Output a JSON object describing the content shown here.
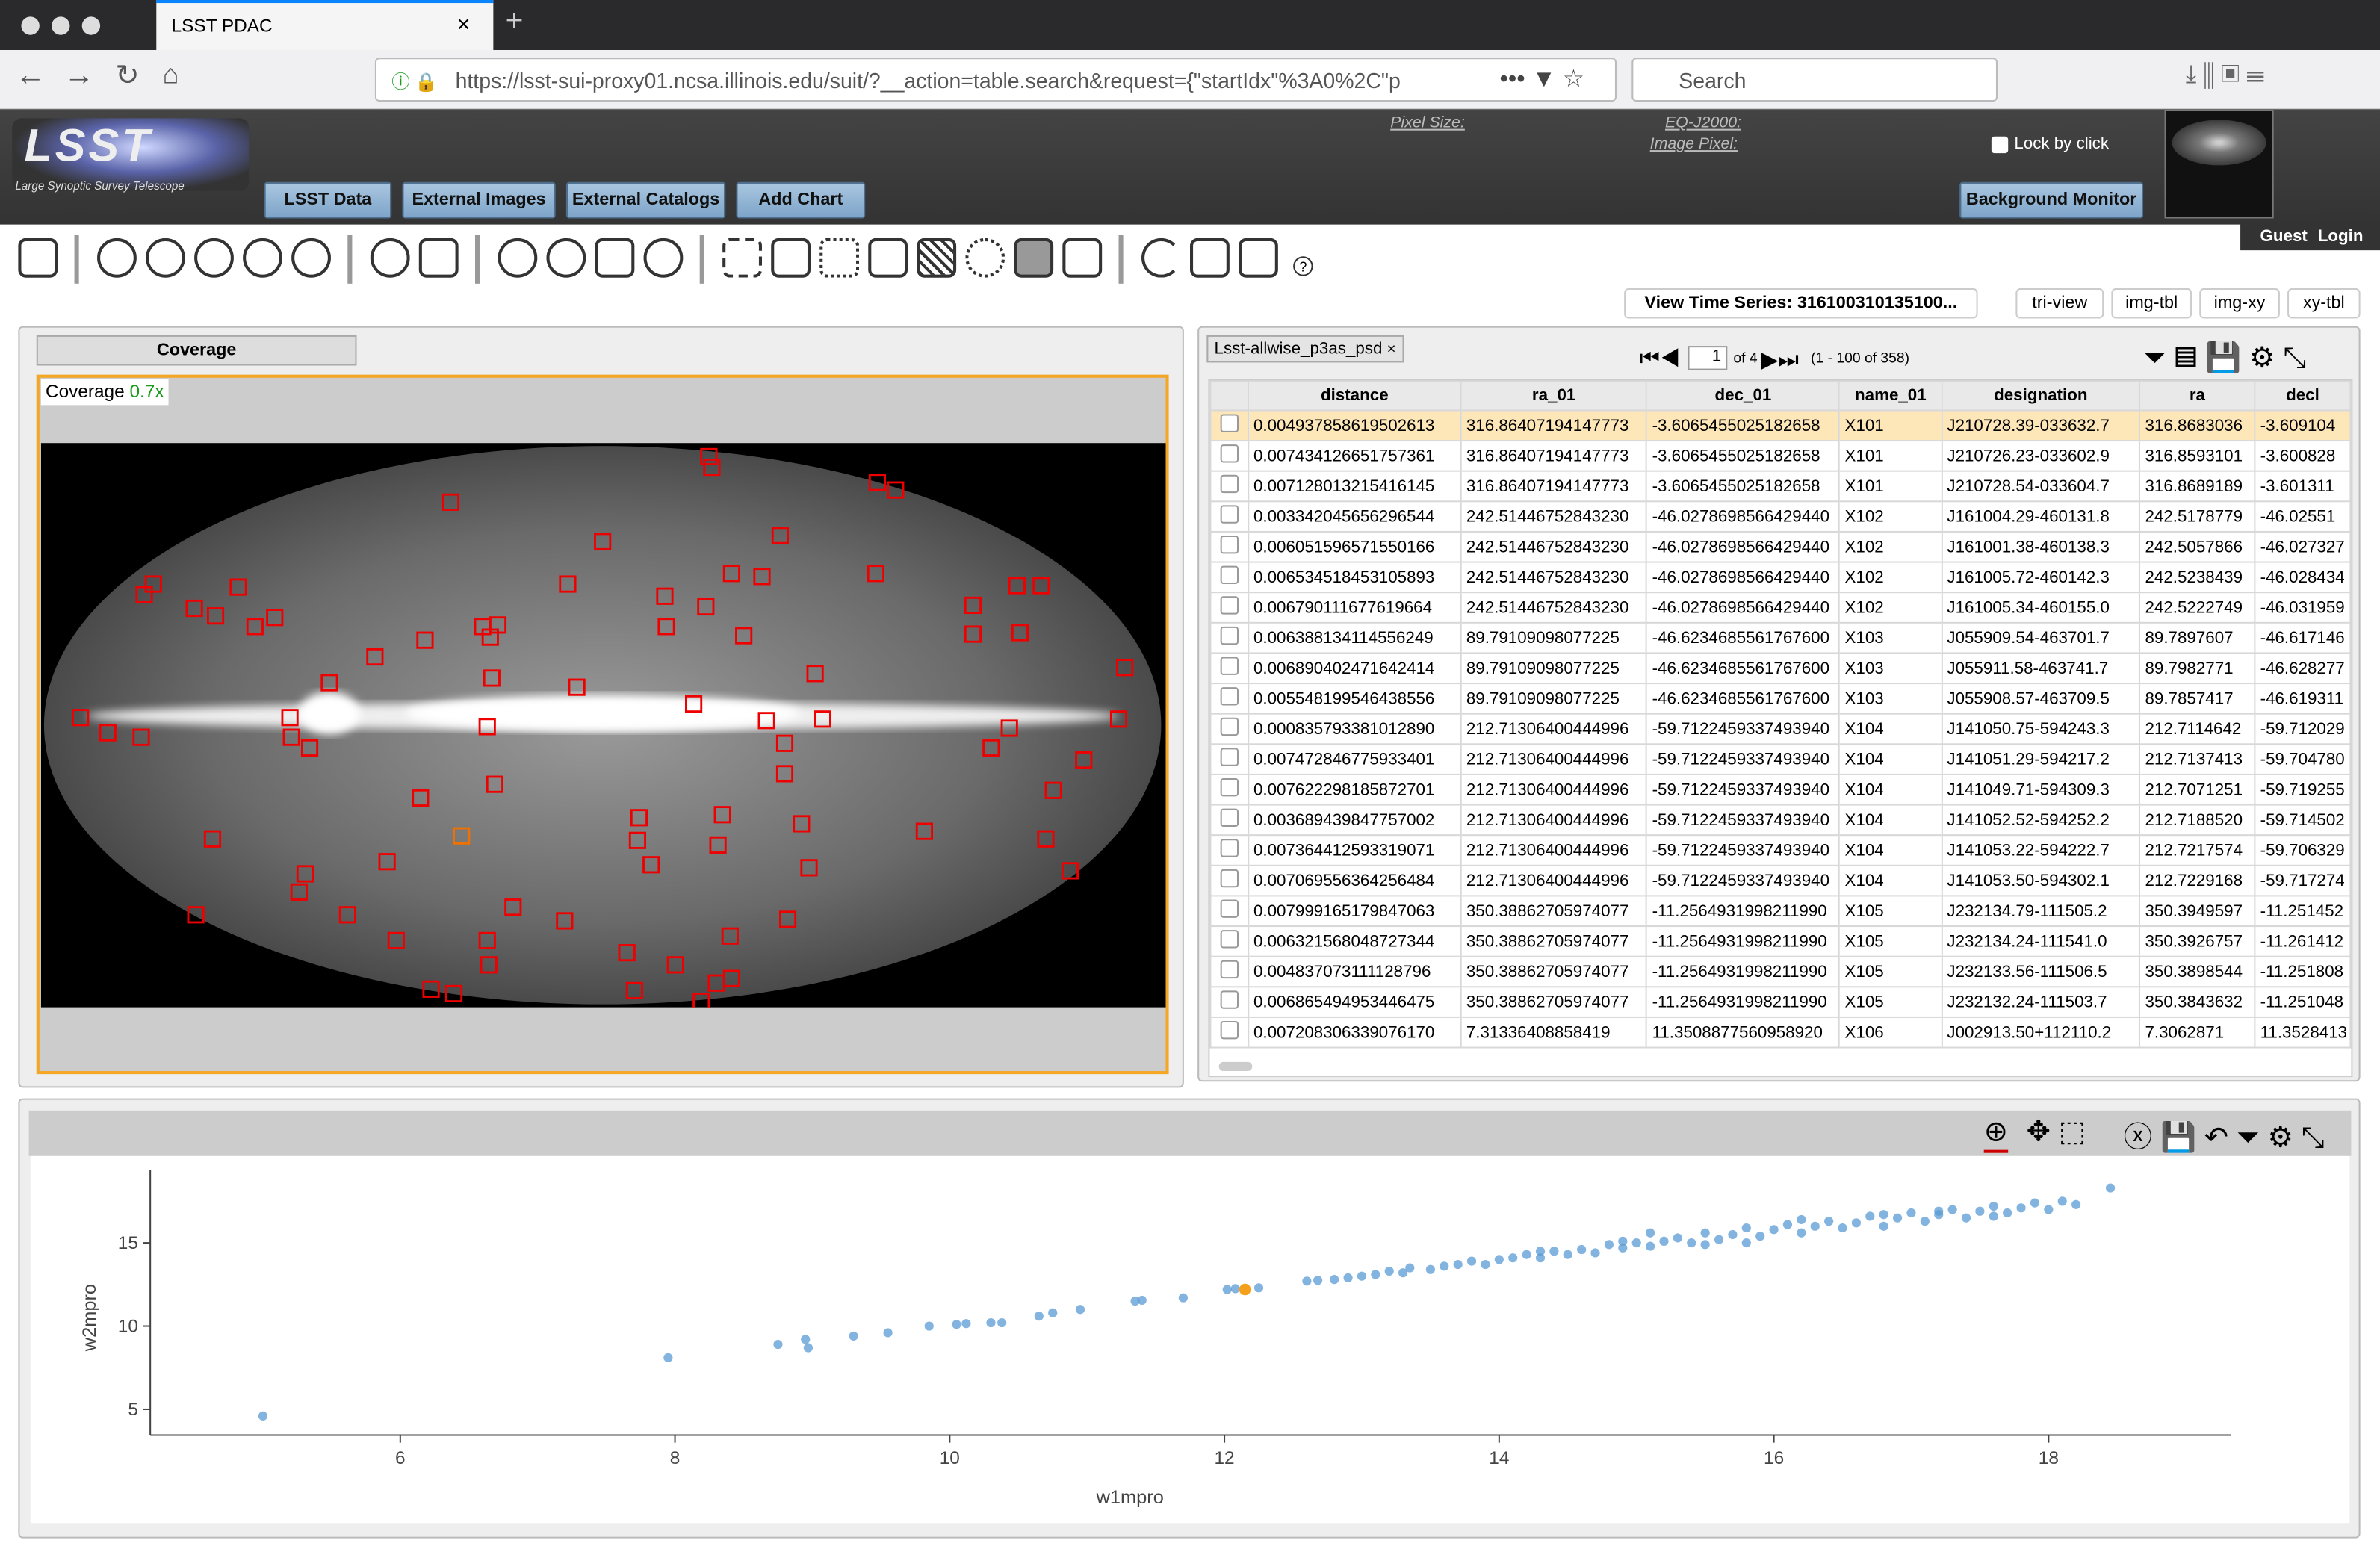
{
  "browser": {
    "tab_title": "LSST PDAC",
    "url": "https://lsst-sui-proxy01.ncsa.illinois.edu/suit/?__action=table.search&request={\"startIdx\"%3A0%2C\"p",
    "search": "Search"
  },
  "header": {
    "pixel_size": "Pixel Size:",
    "eq_j2000": "EQ-J2000:",
    "image_pixel": "Image Pixel:",
    "lock_by_click": "Lock by click",
    "buttons": [
      "LSST Data",
      "External Images",
      "External Catalogs",
      "Add Chart"
    ],
    "background_monitor": "Background Monitor",
    "guest": "Guest",
    "login": "Login",
    "logo_text": "Large Synoptic Survey Telescope"
  },
  "view": {
    "time_series": "View Time Series: 316100310135100...",
    "layouts": [
      "tri-view",
      "img-tbl",
      "img-xy",
      "xy-tbl"
    ]
  },
  "coverage": {
    "tab": "Coverage",
    "label": "Coverage",
    "zoom": "0.7x"
  },
  "table": {
    "tab": "Lsst-allwise_p3as_psd",
    "page": "1",
    "of_pages": "of 4",
    "range": "(1 - 100 of 358)",
    "columns": [
      "distance",
      "ra_01",
      "dec_01",
      "name_01",
      "designation",
      "ra",
      "decl"
    ],
    "rows": [
      [
        "0.004937858619502613",
        "316.86407194147773",
        "-3.6065455025182658",
        "X101",
        "J210728.39-033632.7",
        "316.8683036",
        "-3.609104"
      ],
      [
        "0.007434126651757361",
        "316.86407194147773",
        "-3.6065455025182658",
        "X101",
        "J210726.23-033602.9",
        "316.8593101",
        "-3.600828"
      ],
      [
        "0.007128013215416145",
        "316.86407194147773",
        "-3.6065455025182658",
        "X101",
        "J210728.54-033604.7",
        "316.8689189",
        "-3.601311"
      ],
      [
        "0.003342045656296544",
        "242.51446752843230",
        "-46.0278698566429440",
        "X102",
        "J161004.29-460131.8",
        "242.5178779",
        "-46.02551"
      ],
      [
        "0.006051596571550166",
        "242.51446752843230",
        "-46.0278698566429440",
        "X102",
        "J161001.38-460138.3",
        "242.5057866",
        "-46.027327"
      ],
      [
        "0.006534518453105893",
        "242.51446752843230",
        "-46.0278698566429440",
        "X102",
        "J161005.72-460142.3",
        "242.5238439",
        "-46.028434"
      ],
      [
        "0.006790111677619664",
        "242.51446752843230",
        "-46.0278698566429440",
        "X102",
        "J161005.34-460155.0",
        "242.5222749",
        "-46.031959"
      ],
      [
        "0.006388134114556249",
        "89.79109098077225",
        "-46.6234685561767600",
        "X103",
        "J055909.54-463701.7",
        "89.7897607",
        "-46.617146"
      ],
      [
        "0.006890402471642414",
        "89.79109098077225",
        "-46.6234685561767600",
        "X103",
        "J055911.58-463741.7",
        "89.7982771",
        "-46.628277"
      ],
      [
        "0.005548199546438556",
        "89.79109098077225",
        "-46.6234685561767600",
        "X103",
        "J055908.57-463709.5",
        "89.7857417",
        "-46.619311"
      ],
      [
        "0.000835793381012890",
        "212.71306400444996",
        "-59.7122459337493940",
        "X104",
        "J141050.75-594243.3",
        "212.7114642",
        "-59.712029"
      ],
      [
        "0.007472846775933401",
        "212.71306400444996",
        "-59.7122459337493940",
        "X104",
        "J141051.29-594217.2",
        "212.7137413",
        "-59.704780"
      ],
      [
        "0.007622298185872701",
        "212.71306400444996",
        "-59.7122459337493940",
        "X104",
        "J141049.71-594309.3",
        "212.7071251",
        "-59.719255"
      ],
      [
        "0.003689439847757002",
        "212.71306400444996",
        "-59.7122459337493940",
        "X104",
        "J141052.52-594252.2",
        "212.7188520",
        "-59.714502"
      ],
      [
        "0.007364412593319071",
        "212.71306400444996",
        "-59.7122459337493940",
        "X104",
        "J141053.22-594222.7",
        "212.7217574",
        "-59.706329"
      ],
      [
        "0.007069556364256484",
        "212.71306400444996",
        "-59.7122459337493940",
        "X104",
        "J141053.50-594302.1",
        "212.7229168",
        "-59.717274"
      ],
      [
        "0.007999165179847063",
        "350.38862705974077",
        "-11.2564931998211990",
        "X105",
        "J232134.79-111505.2",
        "350.3949597",
        "-11.251452"
      ],
      [
        "0.006321568048727344",
        "350.38862705974077",
        "-11.2564931998211990",
        "X105",
        "J232134.24-111541.0",
        "350.3926757",
        "-11.261412"
      ],
      [
        "0.004837073111128796",
        "350.38862705974077",
        "-11.2564931998211990",
        "X105",
        "J232133.56-111506.5",
        "350.3898544",
        "-11.251808"
      ],
      [
        "0.006865494953446475",
        "350.38862705974077",
        "-11.2564931998211990",
        "X105",
        "J232132.24-111503.7",
        "350.3843632",
        "-11.251048"
      ],
      [
        "0.007208306339076170",
        "7.31336408858419",
        "11.3508877560958920",
        "X106",
        "J002913.50+112110.2",
        "7.3062871",
        "11.3528413"
      ]
    ]
  },
  "chart_data": {
    "type": "scatter",
    "x_label": "w1mpro",
    "y_label": "w2mpro",
    "xlim": [
      4.18,
      19.33
    ],
    "ylim": [
      3.45,
      19.4
    ],
    "xticks": [
      6,
      8,
      10,
      12,
      14,
      16,
      18
    ],
    "yticks": [
      5,
      10,
      15
    ],
    "series": [
      {
        "color": "#5a9bd4",
        "x": [
          5.0,
          7.95,
          8.75,
          8.95,
          8.97,
          9.3,
          9.55,
          9.85,
          10.05,
          10.12,
          10.3,
          10.38,
          10.65,
          10.75,
          10.95,
          11.35,
          11.4,
          11.7,
          12.02,
          12.08,
          12.25,
          12.6,
          12.68,
          12.8,
          12.9,
          13.0,
          13.1,
          13.2,
          13.3,
          13.35,
          13.5,
          13.6,
          13.7,
          13.8,
          13.9,
          14.0,
          14.1,
          14.2,
          14.3,
          14.4,
          14.5,
          14.6,
          14.7,
          14.8,
          14.9,
          15.0,
          15.1,
          15.1,
          15.2,
          15.3,
          15.4,
          15.5,
          15.6,
          15.7,
          15.8,
          15.9,
          16.0,
          16.1,
          16.2,
          16.3,
          16.4,
          16.5,
          16.6,
          16.7,
          16.8,
          16.9,
          17.0,
          17.1,
          17.2,
          17.3,
          17.4,
          17.5,
          17.6,
          17.7,
          17.8,
          17.9,
          18.0,
          18.1,
          18.2,
          18.45,
          14.3,
          15.5,
          16.8,
          17.2,
          15.8,
          16.2,
          17.6,
          14.9
        ],
        "values": [
          4.6,
          8.1,
          8.9,
          9.2,
          8.7,
          9.4,
          9.6,
          10.0,
          10.1,
          10.15,
          10.2,
          10.2,
          10.6,
          10.8,
          11.0,
          11.5,
          11.55,
          11.7,
          12.2,
          12.25,
          12.3,
          12.7,
          12.75,
          12.8,
          12.9,
          13.0,
          13.1,
          13.3,
          13.2,
          13.5,
          13.4,
          13.6,
          13.7,
          13.9,
          13.7,
          14.0,
          14.1,
          14.3,
          14.1,
          14.5,
          14.3,
          14.6,
          14.4,
          14.9,
          14.7,
          15.0,
          14.8,
          15.6,
          15.1,
          15.3,
          15.0,
          15.6,
          15.2,
          15.5,
          15.9,
          15.4,
          15.8,
          16.1,
          15.6,
          16.0,
          16.3,
          15.9,
          16.2,
          16.6,
          16.0,
          16.5,
          16.8,
          16.3,
          16.7,
          17.0,
          16.5,
          16.9,
          17.2,
          16.8,
          17.1,
          17.4,
          17.0,
          17.5,
          17.3,
          18.3,
          14.5,
          14.9,
          16.7,
          16.9,
          15.0,
          16.4,
          16.6,
          15.1
        ]
      },
      {
        "color": "#f5a01a",
        "x": [
          12.15
        ],
        "values": [
          12.2
        ]
      }
    ]
  }
}
